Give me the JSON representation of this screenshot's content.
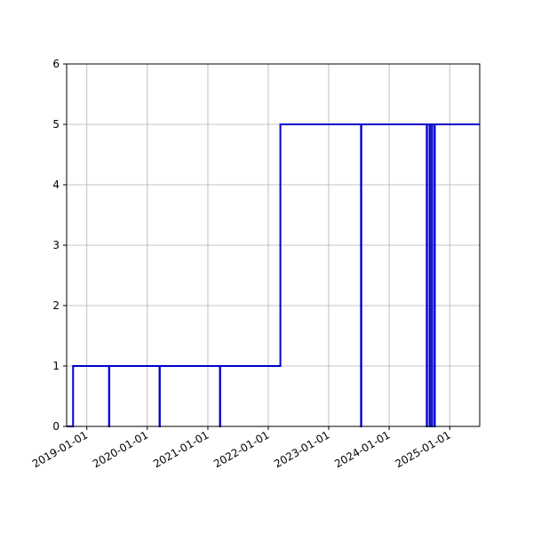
{
  "chart_data": {
    "type": "line",
    "title": "",
    "xlabel": "",
    "ylabel": "",
    "x_is_date": true,
    "xlim": [
      "2018-09-01",
      "2025-07-01"
    ],
    "ylim": [
      0,
      6
    ],
    "grid": true,
    "legend": null,
    "line_style": "steps-post",
    "x_tick_labels": [
      "2019-01-01",
      "2020-01-01",
      "2021-01-01",
      "2022-01-01",
      "2023-01-01",
      "2024-01-01",
      "2025-01-01"
    ],
    "y_tick_labels": [
      "0",
      "1",
      "2",
      "3",
      "4",
      "5",
      "6"
    ],
    "series": [
      {
        "color": "#0000cc",
        "x": [
          "2018-09-01",
          "2018-10-10",
          "2018-10-10",
          "2019-05-15",
          "2019-05-15",
          "2019-05-17",
          "2019-05-17",
          "2020-03-15",
          "2020-03-15",
          "2020-03-17",
          "2020-03-17",
          "2021-03-15",
          "2021-03-15",
          "2021-03-17",
          "2021-03-17",
          "2022-03-15",
          "2022-03-15",
          "2023-07-15",
          "2023-07-15",
          "2023-07-17",
          "2023-07-17",
          "2024-08-15",
          "2024-08-15",
          "2024-08-17",
          "2024-08-17",
          "2024-09-01",
          "2024-09-01",
          "2024-09-03",
          "2024-09-03",
          "2024-09-15",
          "2024-09-15",
          "2024-09-17",
          "2024-09-17",
          "2024-10-01",
          "2024-10-01",
          "2024-10-03",
          "2024-10-03",
          "2025-07-01"
        ],
        "values": [
          0,
          0,
          1,
          1,
          0,
          0,
          1,
          1,
          0,
          0,
          1,
          1,
          0,
          0,
          1,
          1,
          5,
          5,
          0,
          0,
          5,
          5,
          0,
          0,
          5,
          5,
          0,
          0,
          5,
          5,
          0,
          0,
          5,
          5,
          0,
          0,
          5,
          5
        ]
      }
    ]
  }
}
